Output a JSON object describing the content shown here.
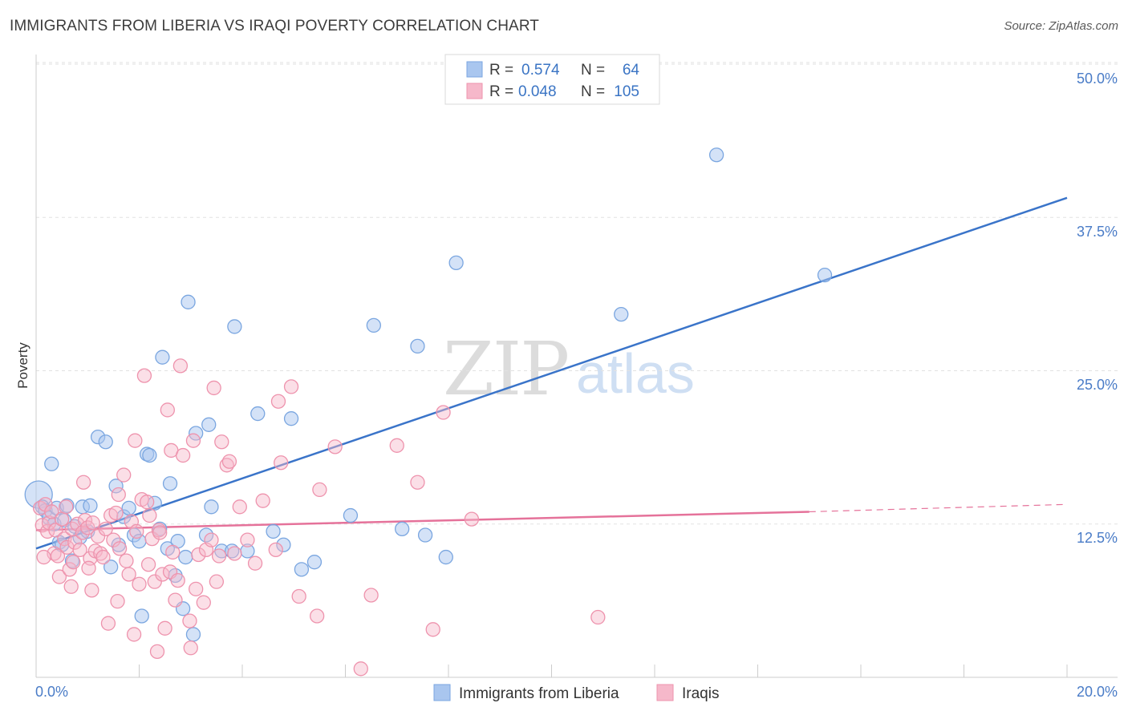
{
  "header": {
    "title": "IMMIGRANTS FROM LIBERIA VS IRAQI POVERTY CORRELATION CHART",
    "source": "Source: ZipAtlas.com"
  },
  "watermark": {
    "zip": "ZIP",
    "atlas": "atlas"
  },
  "legend": {
    "rows": [
      {
        "r_label": "R =",
        "r_value": "0.574",
        "n_label": "N =",
        "n_value": "64",
        "color": "#a9c6ef"
      },
      {
        "r_label": "R =",
        "r_value": "0.048",
        "n_label": "N =",
        "n_value": "105",
        "color": "#f6b8ca"
      }
    ]
  },
  "colors": {
    "blue_fill": "#a9c6ef",
    "blue_stroke": "#7aa6e0",
    "blue_line": "#3a74c9",
    "pink_fill": "#f6b8ca",
    "pink_stroke": "#ee93ad",
    "pink_line": "#e5729a",
    "grid": "#e2e2e2",
    "axis_text": "#4a7cc7"
  },
  "chart_data": {
    "type": "scatter",
    "title": "IMMIGRANTS FROM LIBERIA VS IRAQI POVERTY CORRELATION CHART",
    "xlabel": "",
    "ylabel": "Poverty",
    "xlim": [
      0,
      20
    ],
    "ylim": [
      0,
      52
    ],
    "x_tick_labels": [
      "0.0%",
      "20.0%"
    ],
    "y_ticks": [
      12.5,
      25.0,
      37.5,
      50.0
    ],
    "y_tick_labels": [
      "12.5%",
      "25.0%",
      "37.5%",
      "50.0%"
    ],
    "grid": true,
    "legend_position": "top-center",
    "series": [
      {
        "name": "Immigrants from Liberia",
        "r": 0.574,
        "n": 64,
        "trend": {
          "x0": 0,
          "y0": 10.5,
          "x1": 20,
          "y1": 39.1
        },
        "points": [
          [
            0.05,
            14.9
          ],
          [
            0.12,
            13.9
          ],
          [
            0.18,
            13.6
          ],
          [
            0.25,
            13.0
          ],
          [
            0.3,
            17.4
          ],
          [
            0.35,
            12.5
          ],
          [
            0.4,
            13.8
          ],
          [
            0.45,
            11.0
          ],
          [
            0.5,
            10.8
          ],
          [
            0.55,
            12.8
          ],
          [
            0.6,
            14.0
          ],
          [
            0.7,
            9.5
          ],
          [
            0.75,
            12.3
          ],
          [
            0.85,
            11.4
          ],
          [
            0.9,
            13.9
          ],
          [
            1.0,
            11.9
          ],
          [
            1.05,
            14.0
          ],
          [
            1.2,
            19.6
          ],
          [
            1.35,
            19.2
          ],
          [
            1.45,
            9.0
          ],
          [
            1.55,
            15.6
          ],
          [
            1.6,
            10.8
          ],
          [
            1.7,
            13.1
          ],
          [
            1.8,
            13.8
          ],
          [
            1.9,
            11.6
          ],
          [
            2.0,
            11.1
          ],
          [
            2.05,
            5.0
          ],
          [
            2.15,
            18.2
          ],
          [
            2.2,
            18.1
          ],
          [
            2.3,
            14.2
          ],
          [
            2.4,
            12.1
          ],
          [
            2.45,
            26.1
          ],
          [
            2.55,
            10.5
          ],
          [
            2.6,
            15.8
          ],
          [
            2.7,
            8.3
          ],
          [
            2.75,
            11.1
          ],
          [
            2.85,
            5.6
          ],
          [
            2.9,
            9.8
          ],
          [
            2.95,
            30.6
          ],
          [
            3.05,
            3.5
          ],
          [
            3.1,
            19.9
          ],
          [
            3.3,
            11.6
          ],
          [
            3.35,
            20.6
          ],
          [
            3.4,
            13.9
          ],
          [
            3.6,
            10.3
          ],
          [
            3.8,
            10.3
          ],
          [
            3.85,
            28.6
          ],
          [
            4.1,
            10.3
          ],
          [
            4.3,
            21.5
          ],
          [
            4.6,
            11.9
          ],
          [
            4.8,
            10.8
          ],
          [
            4.95,
            21.1
          ],
          [
            5.15,
            8.8
          ],
          [
            5.4,
            9.4
          ],
          [
            6.1,
            13.2
          ],
          [
            6.55,
            28.7
          ],
          [
            7.1,
            12.1
          ],
          [
            7.4,
            27.0
          ],
          [
            7.55,
            11.6
          ],
          [
            7.95,
            9.8
          ],
          [
            8.15,
            33.8
          ],
          [
            11.35,
            29.6
          ],
          [
            13.2,
            42.6
          ],
          [
            15.3,
            32.8
          ]
        ]
      },
      {
        "name": "Iraqis",
        "r": 0.048,
        "n": 105,
        "trend": {
          "x0": 0,
          "y0": 12.0,
          "x1": 15.0,
          "y1": 13.5
        },
        "trend_dashed": {
          "x0": 15.0,
          "y0": 13.5,
          "x1": 20,
          "y1": 14.1
        },
        "points": [
          [
            0.08,
            13.8
          ],
          [
            0.12,
            12.4
          ],
          [
            0.18,
            14.1
          ],
          [
            0.22,
            11.9
          ],
          [
            0.25,
            12.6
          ],
          [
            0.3,
            13.5
          ],
          [
            0.35,
            10.1
          ],
          [
            0.38,
            12.0
          ],
          [
            0.42,
            9.9
          ],
          [
            0.45,
            8.2
          ],
          [
            0.5,
            12.9
          ],
          [
            0.55,
            11.3
          ],
          [
            0.6,
            10.6
          ],
          [
            0.65,
            8.8
          ],
          [
            0.7,
            12.1
          ],
          [
            0.72,
            9.4
          ],
          [
            0.75,
            11.0
          ],
          [
            0.8,
            12.5
          ],
          [
            0.85,
            10.4
          ],
          [
            0.9,
            11.8
          ],
          [
            0.92,
            15.9
          ],
          [
            0.95,
            12.8
          ],
          [
            1.0,
            12.2
          ],
          [
            1.05,
            9.7
          ],
          [
            1.08,
            7.1
          ],
          [
            1.1,
            12.6
          ],
          [
            1.15,
            10.3
          ],
          [
            1.2,
            11.5
          ],
          [
            1.25,
            10.1
          ],
          [
            1.3,
            9.8
          ],
          [
            1.35,
            12.1
          ],
          [
            1.4,
            4.4
          ],
          [
            1.45,
            13.2
          ],
          [
            1.5,
            11.2
          ],
          [
            1.55,
            13.4
          ],
          [
            1.6,
            14.9
          ],
          [
            1.62,
            10.5
          ],
          [
            1.7,
            16.5
          ],
          [
            1.75,
            9.5
          ],
          [
            1.8,
            8.4
          ],
          [
            1.85,
            12.7
          ],
          [
            1.9,
            3.5
          ],
          [
            1.92,
            19.3
          ],
          [
            1.95,
            11.9
          ],
          [
            2.0,
            7.6
          ],
          [
            2.05,
            14.5
          ],
          [
            2.1,
            24.6
          ],
          [
            2.15,
            14.3
          ],
          [
            2.2,
            13.2
          ],
          [
            2.25,
            11.3
          ],
          [
            2.3,
            7.8
          ],
          [
            2.35,
            2.1
          ],
          [
            2.38,
            12.0
          ],
          [
            2.4,
            11.8
          ],
          [
            2.45,
            8.4
          ],
          [
            2.5,
            4.0
          ],
          [
            2.55,
            21.8
          ],
          [
            2.6,
            8.6
          ],
          [
            2.62,
            18.5
          ],
          [
            2.65,
            10.2
          ],
          [
            2.7,
            6.3
          ],
          [
            2.75,
            7.9
          ],
          [
            2.8,
            25.4
          ],
          [
            2.85,
            18.1
          ],
          [
            3.0,
            2.4
          ],
          [
            3.05,
            19.3
          ],
          [
            3.1,
            7.2
          ],
          [
            3.15,
            10.0
          ],
          [
            3.3,
            10.4
          ],
          [
            3.4,
            11.2
          ],
          [
            3.45,
            23.6
          ],
          [
            3.5,
            7.8
          ],
          [
            3.55,
            9.9
          ],
          [
            3.6,
            19.2
          ],
          [
            3.7,
            17.3
          ],
          [
            3.75,
            17.6
          ],
          [
            3.85,
            10.1
          ],
          [
            3.95,
            13.9
          ],
          [
            4.1,
            11.2
          ],
          [
            4.25,
            9.3
          ],
          [
            4.4,
            14.4
          ],
          [
            4.65,
            10.4
          ],
          [
            4.7,
            22.5
          ],
          [
            4.75,
            17.5
          ],
          [
            4.95,
            23.7
          ],
          [
            5.1,
            6.6
          ],
          [
            5.45,
            5.0
          ],
          [
            5.5,
            15.3
          ],
          [
            5.8,
            18.8
          ],
          [
            6.3,
            0.7
          ],
          [
            6.5,
            6.7
          ],
          [
            7.0,
            18.9
          ],
          [
            7.4,
            15.9
          ],
          [
            7.7,
            3.9
          ],
          [
            7.9,
            21.6
          ],
          [
            8.45,
            12.9
          ],
          [
            10.9,
            4.9
          ],
          [
            0.15,
            9.8
          ],
          [
            0.58,
            13.9
          ],
          [
            1.02,
            8.9
          ],
          [
            1.58,
            6.2
          ],
          [
            2.18,
            9.2
          ],
          [
            3.25,
            6.1
          ],
          [
            0.68,
            7.4
          ],
          [
            2.98,
            4.6
          ]
        ]
      }
    ]
  },
  "bottom_legend": {
    "items": [
      {
        "label": "Immigrants from Liberia",
        "color": "#a9c6ef"
      },
      {
        "label": "Iraqis",
        "color": "#f6b8ca"
      }
    ]
  }
}
